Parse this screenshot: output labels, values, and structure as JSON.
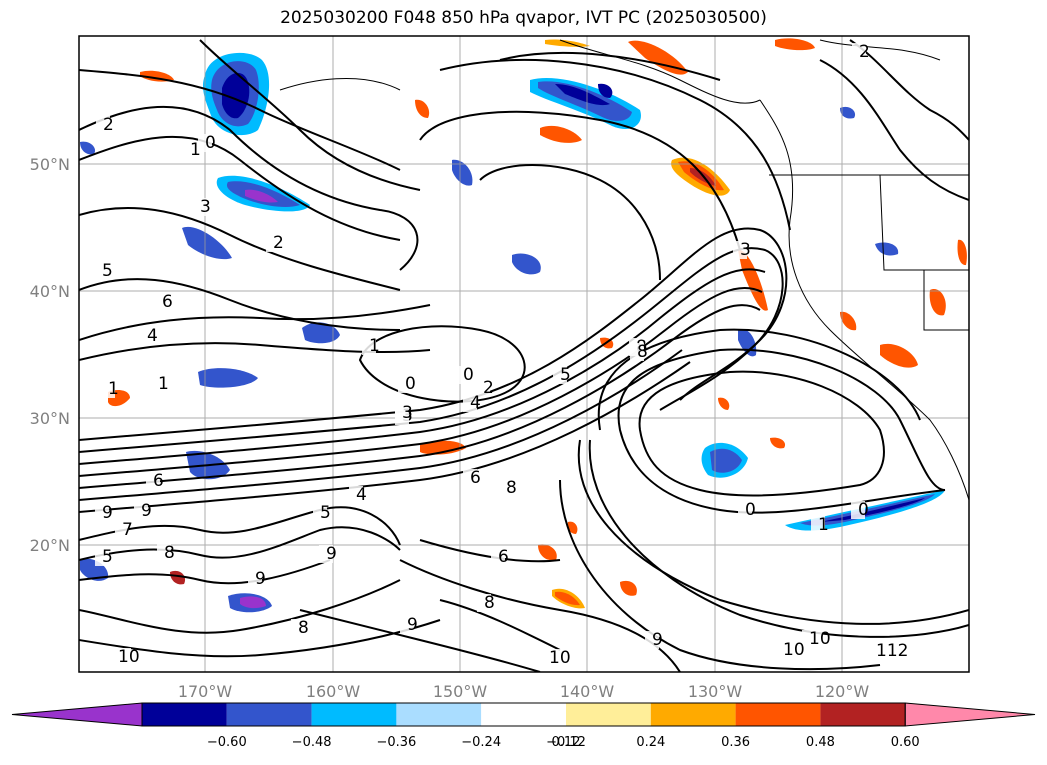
{
  "title": "2025030200 F048 850 hPa qvapor, IVT PC (2025030500)",
  "lat_labels": [
    "50°N",
    "40°N",
    "30°N",
    "20°N"
  ],
  "lon_labels": [
    "170°W",
    "160°W",
    "150°W",
    "140°W",
    "130°W",
    "120°W"
  ],
  "colorbar": {
    "colors": [
      "#9933cc",
      "#000099",
      "#3355cc",
      "#00bbff",
      "#aaddff",
      "#ffffff",
      "#ffee99",
      "#ffaa00",
      "#ff5500",
      "#b22222",
      "#ff88aa"
    ],
    "tick_labels": [
      "−0.60",
      "−0.48",
      "−0.36",
      "−0.24",
      "−0.12",
      "0.12",
      "0.24",
      "0.36",
      "0.48",
      "0.60"
    ]
  },
  "contour_labels": [
    "2",
    "1",
    "0",
    "3",
    "2",
    "5",
    "6",
    "4",
    "1",
    "1",
    "1",
    "0",
    "0",
    "2",
    "4",
    "3",
    "6",
    "5",
    "6",
    "8",
    "9",
    "9",
    "7",
    "5",
    "8",
    "9",
    "8",
    "9",
    "8",
    "6",
    "9",
    "10",
    "10",
    "8",
    "9",
    "10",
    "0",
    "0",
    "1",
    "3",
    "3",
    "4",
    "5",
    "8",
    "2",
    "10",
    "112"
  ]
}
